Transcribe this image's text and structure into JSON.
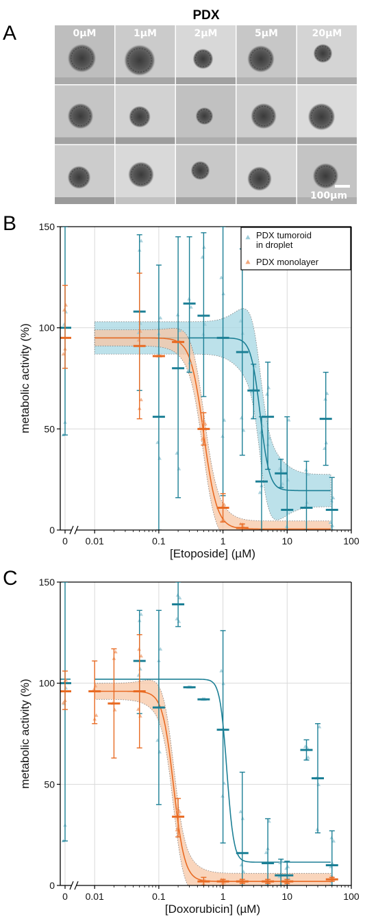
{
  "panel_a": {
    "letter": "A",
    "title": "PDX",
    "conditions": [
      "0µM",
      "1µM",
      "2µM",
      "5µM",
      "20µM"
    ],
    "scale_bar_label": "100µm",
    "rows": 3
  },
  "chart_data": [
    {
      "type": "scatter",
      "panel": "B",
      "xlabel": "[Etoposide] (µM)",
      "ylabel": "metabolic activity (%)",
      "x_scale": "log",
      "xlim": [
        0.005,
        100
      ],
      "ylim": [
        0,
        150
      ],
      "x_ticks": [
        "0",
        "0.01",
        "0.1",
        "1",
        "10",
        "100"
      ],
      "y_ticks": [
        "0",
        "50",
        "100",
        "150"
      ],
      "grid": true,
      "legend_position": "top-right",
      "series": [
        {
          "name": "PDX tumoroid in droplet",
          "color": "#1b7f95",
          "band_color": "#a6d8e4",
          "fit": {
            "top": 95,
            "bottom": 19.5,
            "ic50": 3.8,
            "hill": 6
          },
          "points": [
            {
              "x": 0,
              "mean": 100,
              "low": 47,
              "high": 150
            },
            {
              "x": 0.05,
              "mean": 108,
              "low": 69,
              "high": 146
            },
            {
              "x": 0.1,
              "mean": 56,
              "low": 0,
              "high": 131
            },
            {
              "x": 0.2,
              "mean": 80,
              "low": 16,
              "high": 145
            },
            {
              "x": 0.3,
              "mean": 112,
              "low": 78,
              "high": 145
            },
            {
              "x": 0.5,
              "mean": 106,
              "low": 66,
              "high": 147
            },
            {
              "x": 1,
              "mean": 95,
              "low": 17,
              "high": 150
            },
            {
              "x": 2,
              "mean": 88,
              "low": 37,
              "high": 139
            },
            {
              "x": 3,
              "mean": 69,
              "low": 55,
              "high": 82
            },
            {
              "x": 4,
              "mean": 24,
              "low": 0,
              "high": 56
            },
            {
              "x": 5,
              "mean": 56,
              "low": 30,
              "high": 83
            },
            {
              "x": 8,
              "mean": 28,
              "low": 21,
              "high": 35
            },
            {
              "x": 10,
              "mean": 10,
              "low": 0,
              "high": 56
            },
            {
              "x": 20,
              "mean": 11,
              "low": 0,
              "high": 34
            },
            {
              "x": 40,
              "mean": 55,
              "low": 32,
              "high": 78
            },
            {
              "x": 50,
              "mean": 10,
              "low": 0,
              "high": 26
            }
          ]
        },
        {
          "name": "PDX monolayer",
          "color": "#e86a22",
          "band_color": "#f8c7a6",
          "fit": {
            "top": 95,
            "bottom": 0.5,
            "ic50": 0.5,
            "hill": 4.2
          },
          "points": [
            {
              "x": 0,
              "mean": 95,
              "low": 80,
              "high": 121
            },
            {
              "x": 0.05,
              "mean": 91,
              "low": 55,
              "high": 127
            },
            {
              "x": 0.1,
              "mean": 86,
              "low": 86,
              "high": 86
            },
            {
              "x": 0.2,
              "mean": 93,
              "low": 93,
              "high": 93
            },
            {
              "x": 0.5,
              "mean": 50,
              "low": 42,
              "high": 58
            },
            {
              "x": 1,
              "mean": 11,
              "low": 4,
              "high": 18
            },
            {
              "x": 2,
              "mean": 1,
              "low": 0,
              "high": 3
            }
          ]
        }
      ]
    },
    {
      "type": "scatter",
      "panel": "C",
      "xlabel": "[Doxorubicin] (µM)",
      "ylabel": "metabolic activity (%)",
      "x_scale": "log",
      "xlim": [
        0.005,
        100
      ],
      "ylim": [
        0,
        150
      ],
      "x_ticks": [
        "0",
        "0.01",
        "0.1",
        "1",
        "10",
        "100"
      ],
      "y_ticks": [
        "0",
        "50",
        "100",
        "150"
      ],
      "grid": true,
      "series": [
        {
          "name": "PDX tumoroid in droplet",
          "color": "#1b7f95",
          "band_color": "",
          "fit": {
            "top": 102,
            "bottom": 11.5,
            "ic50": 1.15,
            "hill": 8
          },
          "points": [
            {
              "x": 0,
              "mean": 100,
              "low": 22,
              "high": 150
            },
            {
              "x": 0.05,
              "mean": 111,
              "low": 85,
              "high": 136
            },
            {
              "x": 0.1,
              "mean": 88,
              "low": 40,
              "high": 136
            },
            {
              "x": 0.2,
              "mean": 139,
              "low": 128,
              "high": 150
            },
            {
              "x": 0.3,
              "mean": 98,
              "low": 98,
              "high": 98
            },
            {
              "x": 0.5,
              "mean": 92,
              "low": 92,
              "high": 92
            },
            {
              "x": 1,
              "mean": 77,
              "low": 21,
              "high": 126
            },
            {
              "x": 2,
              "mean": 16,
              "low": 0,
              "high": 56
            },
            {
              "x": 5,
              "mean": 11,
              "low": 0,
              "high": 33
            },
            {
              "x": 8,
              "mean": 5,
              "low": 0,
              "high": 13
            },
            {
              "x": 10,
              "mean": 5,
              "low": 0,
              "high": 12
            },
            {
              "x": 20,
              "mean": 67,
              "low": 62,
              "high": 72
            },
            {
              "x": 30,
              "mean": 53,
              "low": 26,
              "high": 80
            },
            {
              "x": 50,
              "mean": 10,
              "low": 0,
              "high": 27
            }
          ]
        },
        {
          "name": "PDX monolayer",
          "color": "#e86a22",
          "band_color": "#f8c7a6",
          "fit": {
            "top": 96,
            "bottom": 2,
            "ic50": 0.17,
            "hill": 5
          },
          "points": [
            {
              "x": 0,
              "mean": 96,
              "low": 87,
              "high": 106
            },
            {
              "x": 0.01,
              "mean": 96,
              "low": 80,
              "high": 111
            },
            {
              "x": 0.02,
              "mean": 90,
              "low": 63,
              "high": 117
            },
            {
              "x": 0.05,
              "mean": 96,
              "low": 68,
              "high": 124
            },
            {
              "x": 0.2,
              "mean": 34,
              "low": 24,
              "high": 43
            },
            {
              "x": 0.5,
              "mean": 2,
              "low": 0,
              "high": 4
            },
            {
              "x": 1,
              "mean": 2,
              "low": 0,
              "high": 3
            },
            {
              "x": 2,
              "mean": 2,
              "low": 1,
              "high": 3
            },
            {
              "x": 5,
              "mean": 2,
              "low": 1,
              "high": 3
            },
            {
              "x": 10,
              "mean": 2,
              "low": 1,
              "high": 3
            },
            {
              "x": 50,
              "mean": 3,
              "low": 2,
              "high": 4
            }
          ]
        }
      ]
    }
  ]
}
